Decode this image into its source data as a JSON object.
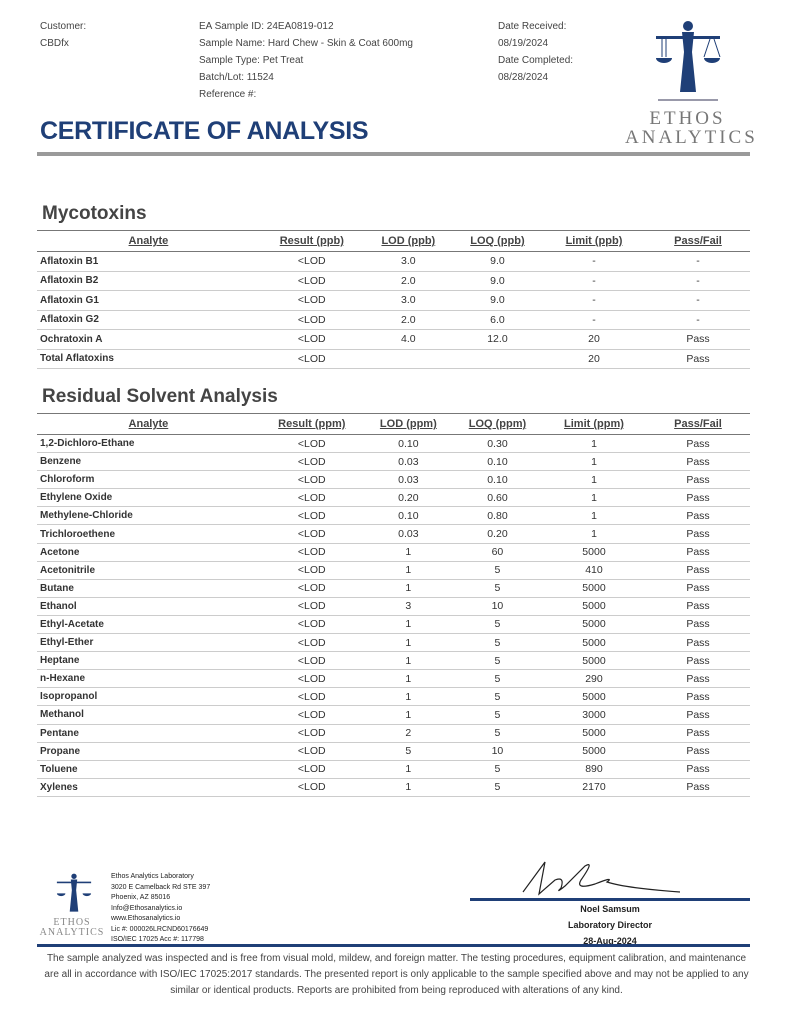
{
  "header": {
    "customer_label": "Customer:",
    "customer": "CBDfx",
    "sample_id": "EA Sample ID: 24EA0819-012",
    "sample_name": "Sample Name: Hard Chew - Skin & Coat 600mg",
    "sample_type": "Sample Type: Pet Treat",
    "batch": "Batch/Lot: 11524",
    "reference": "Reference #:",
    "date_received_label": "Date Received:",
    "date_received": "08/19/2024",
    "date_completed_label": "Date Completed:",
    "date_completed": "08/28/2024",
    "title": "CERTIFICATE OF ANALYSIS",
    "logo_top": "ETHOS",
    "logo_bottom": "ANALYTICS"
  },
  "mycotoxins": {
    "title": "Mycotoxins",
    "columns": [
      "Analyte",
      "Result (ppb)",
      "LOD (ppb)",
      "LOQ (ppb)",
      "Limit (ppb)",
      "Pass/Fail"
    ],
    "rows": [
      [
        "Aflatoxin B1",
        "<LOD",
        "3.0",
        "9.0",
        "-",
        "-"
      ],
      [
        "Aflatoxin B2",
        "<LOD",
        "2.0",
        "9.0",
        "-",
        "-"
      ],
      [
        "Aflatoxin G1",
        "<LOD",
        "3.0",
        "9.0",
        "-",
        "-"
      ],
      [
        "Aflatoxin G2",
        "<LOD",
        "2.0",
        "6.0",
        "-",
        "-"
      ],
      [
        "Ochratoxin A",
        "<LOD",
        "4.0",
        "12.0",
        "20",
        "Pass"
      ],
      [
        "Total Aflatoxins",
        "<LOD",
        "",
        "",
        "20",
        "Pass"
      ]
    ]
  },
  "solvents": {
    "title": "Residual Solvent Analysis",
    "columns": [
      "Analyte",
      "Result (ppm)",
      "LOD (ppm)",
      "LOQ (ppm)",
      "Limit (ppm)",
      "Pass/Fail"
    ],
    "rows": [
      [
        "1,2-Dichloro-Ethane",
        "<LOD",
        "0.10",
        "0.30",
        "1",
        "Pass"
      ],
      [
        "Benzene",
        "<LOD",
        "0.03",
        "0.10",
        "1",
        "Pass"
      ],
      [
        "Chloroform",
        "<LOD",
        "0.03",
        "0.10",
        "1",
        "Pass"
      ],
      [
        "Ethylene Oxide",
        "<LOD",
        "0.20",
        "0.60",
        "1",
        "Pass"
      ],
      [
        "Methylene-Chloride",
        "<LOD",
        "0.10",
        "0.80",
        "1",
        "Pass"
      ],
      [
        "Trichloroethene",
        "<LOD",
        "0.03",
        "0.20",
        "1",
        "Pass"
      ],
      [
        "Acetone",
        "<LOD",
        "1",
        "60",
        "5000",
        "Pass"
      ],
      [
        "Acetonitrile",
        "<LOD",
        "1",
        "5",
        "410",
        "Pass"
      ],
      [
        "Butane",
        "<LOD",
        "1",
        "5",
        "5000",
        "Pass"
      ],
      [
        "Ethanol",
        "<LOD",
        "3",
        "10",
        "5000",
        "Pass"
      ],
      [
        "Ethyl-Acetate",
        "<LOD",
        "1",
        "5",
        "5000",
        "Pass"
      ],
      [
        "Ethyl-Ether",
        "<LOD",
        "1",
        "5",
        "5000",
        "Pass"
      ],
      [
        "Heptane",
        "<LOD",
        "1",
        "5",
        "5000",
        "Pass"
      ],
      [
        "n-Hexane",
        "<LOD",
        "1",
        "5",
        "290",
        "Pass"
      ],
      [
        "Isopropanol",
        "<LOD",
        "1",
        "5",
        "5000",
        "Pass"
      ],
      [
        "Methanol",
        "<LOD",
        "1",
        "5",
        "3000",
        "Pass"
      ],
      [
        "Pentane",
        "<LOD",
        "2",
        "5",
        "5000",
        "Pass"
      ],
      [
        "Propane",
        "<LOD",
        "5",
        "10",
        "5000",
        "Pass"
      ],
      [
        "Toluene",
        "<LOD",
        "1",
        "5",
        "890",
        "Pass"
      ],
      [
        "Xylenes",
        "<LOD",
        "1",
        "5",
        "2170",
        "Pass"
      ]
    ]
  },
  "footer": {
    "lab_lines": [
      "Ethos Analytics Laboratory",
      "3020 E Camelback Rd STE 397",
      "Phoenix, AZ 85016",
      "Info@Ethosanalytics.io",
      "www.Ethosanalytics.io",
      "Lic #: 000026LRCND60176649",
      "ISO/IEC 17025 Acc #: 117798"
    ],
    "signer": "Noel Samsum",
    "signer_title": "Laboratory Director",
    "sign_date": "28-Aug-2024",
    "disclaimer": "The sample analyzed was inspected and is free from visual mold, mildew, and foreign matter. The testing procedures, equipment calibration, and maintenance are all in accordance with ISO/IEC 17025:2017 standards. The presented report is only applicable to the sample specified above and may not be applied to any similar or identical products. Reports are prohibited from being reproduced with alterations of any kind."
  },
  "colors": {
    "brand_blue": "#1f3f77",
    "rule_gray": "#9a9a9a"
  }
}
